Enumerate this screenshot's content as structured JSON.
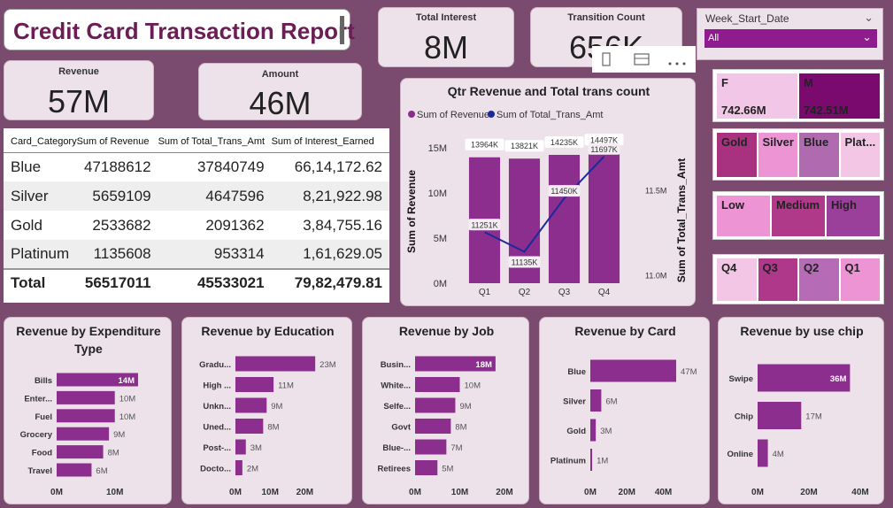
{
  "title": "Credit Card Transaction Report",
  "kpis": {
    "total_interest": {
      "label": "Total Interest",
      "value": "8M"
    },
    "transaction_count": {
      "label": "Transition Count",
      "value": "656K"
    },
    "revenue": {
      "label": "Revenue",
      "value": "57M"
    },
    "amount": {
      "label": "Amount",
      "value": "46M"
    }
  },
  "slicer": {
    "label": "Week_Start_Date",
    "selected": "All"
  },
  "table": {
    "headers": [
      "Card_Category",
      "Sum of Revenue",
      "Sum of Total_Trans_Amt",
      "Sum of Interest_Earned"
    ],
    "rows": [
      {
        "category": "Blue",
        "revenue": "47188612",
        "trans_amt": "37840749",
        "interest": "66,14,172.62"
      },
      {
        "category": "Silver",
        "revenue": "5659109",
        "trans_amt": "4647596",
        "interest": "8,21,922.98"
      },
      {
        "category": "Gold",
        "revenue": "2533682",
        "trans_amt": "2091362",
        "interest": "3,84,755.16"
      },
      {
        "category": "Platinum",
        "revenue": "1135608",
        "trans_amt": "953314",
        "interest": "1,61,629.05"
      }
    ],
    "total": {
      "label": "Total",
      "revenue": "56517011",
      "trans_amt": "45533021",
      "interest": "79,82,479.81"
    }
  },
  "gender_tiles": [
    {
      "label": "F",
      "value": "742.66M",
      "color": "#f2c6e6"
    },
    {
      "label": "M",
      "value": "742.51M",
      "color": "#7a0a6e"
    }
  ],
  "card_tiles": [
    {
      "label": "Gold",
      "color": "#a8327f"
    },
    {
      "label": "Silver",
      "color": "#ec94d4"
    },
    {
      "label": "Blue",
      "color": "#b06bb0"
    },
    {
      "label": "Plat...",
      "color": "#f4c6e6"
    }
  ],
  "income_tiles": [
    {
      "label": "Low",
      "color": "#ec94d4"
    },
    {
      "label": "Medium",
      "color": "#b03a8a"
    },
    {
      "label": "High",
      "color": "#9a3f9a"
    }
  ],
  "qtr_tiles": [
    {
      "label": "Q4",
      "color": "#f4c6e6"
    },
    {
      "label": "Q3",
      "color": "#b0388a"
    },
    {
      "label": "Q2",
      "color": "#b56bb5"
    },
    {
      "label": "Q1",
      "color": "#ec94d4"
    }
  ],
  "chart_data": [
    {
      "type": "bar+line",
      "title": "Qtr Revenue and Total trans count",
      "legend": [
        "Sum of Revenue",
        "Sum of Total_Trans_Amt"
      ],
      "legend_placement": "top-left",
      "categories": [
        "Q1",
        "Q2",
        "Q3",
        "Q4"
      ],
      "series": [
        {
          "name": "Sum of Revenue",
          "type": "bar",
          "values": [
            13964000,
            13821000,
            14235000,
            14497000
          ],
          "labels": [
            "13964K",
            "13821K",
            "14235K",
            "14497K"
          ],
          "color": "#8b2e8e"
        },
        {
          "name": "Sum of Total_Trans_Amt",
          "type": "line",
          "values": [
            11251000,
            11135000,
            11450000,
            11697000
          ],
          "labels": [
            "11251K",
            "11135K",
            "11450K",
            "11697K"
          ],
          "color": "#1a2a9a"
        }
      ],
      "ylabel": "Sum of Revenue",
      "y2label": "Sum of Total_Trans_Amt",
      "y_ticks": [
        "0M",
        "5M",
        "10M",
        "15M"
      ],
      "y2_ticks": [
        "11.0M",
        "11.5M"
      ],
      "ylim": [
        0,
        16000000
      ],
      "y2lim": [
        10950000,
        11800000
      ]
    },
    {
      "type": "bar",
      "orientation": "horizontal",
      "title": "Revenue by Expenditure Type",
      "categories": [
        "Bills",
        "Enter...",
        "Fuel",
        "Grocery",
        "Food",
        "Travel"
      ],
      "values": [
        14,
        10,
        10,
        9,
        8,
        6
      ],
      "labels": [
        "14M",
        "10M",
        "10M",
        "9M",
        "8M",
        "6M"
      ],
      "x_ticks": [
        "0M",
        "10M"
      ],
      "xlim": [
        0,
        14
      ]
    },
    {
      "type": "bar",
      "orientation": "horizontal",
      "title": "Revenue by Education",
      "categories": [
        "Gradu...",
        "High ...",
        "Unkn...",
        "Uned...",
        "Post-...",
        "Docto..."
      ],
      "values": [
        23,
        11,
        9,
        8,
        3,
        2
      ],
      "labels": [
        "23M",
        "11M",
        "9M",
        "8M",
        "3M",
        "2M"
      ],
      "x_ticks": [
        "0M",
        "10M",
        "20M"
      ],
      "xlim": [
        0,
        25
      ]
    },
    {
      "type": "bar",
      "orientation": "horizontal",
      "title": "Revenue by Job",
      "categories": [
        "Busin...",
        "White...",
        "Selfe...",
        "Govt",
        "Blue-...",
        "Retirees"
      ],
      "values": [
        18,
        10,
        9,
        8,
        7,
        5
      ],
      "labels": [
        "18M",
        "10M",
        "9M",
        "8M",
        "7M",
        "5M"
      ],
      "x_ticks": [
        "0M",
        "10M",
        "20M"
      ],
      "xlim": [
        0,
        20
      ]
    },
    {
      "type": "bar",
      "orientation": "horizontal",
      "title": "Revenue by Card",
      "categories": [
        "Blue",
        "Silver",
        "Gold",
        "Platinum"
      ],
      "values": [
        47,
        6,
        3,
        1
      ],
      "labels": [
        "47M",
        "6M",
        "3M",
        "1M"
      ],
      "x_ticks": [
        "0M",
        "20M",
        "40M"
      ],
      "xlim": [
        0,
        47
      ]
    },
    {
      "type": "bar",
      "orientation": "horizontal",
      "title": "Revenue by use chip",
      "categories": [
        "Swipe",
        "Chip",
        "Online"
      ],
      "values": [
        36,
        17,
        4
      ],
      "labels": [
        "36M",
        "17M",
        "4M"
      ],
      "x_ticks": [
        "0M",
        "20M",
        "40M"
      ],
      "xlim": [
        0,
        40
      ]
    }
  ]
}
